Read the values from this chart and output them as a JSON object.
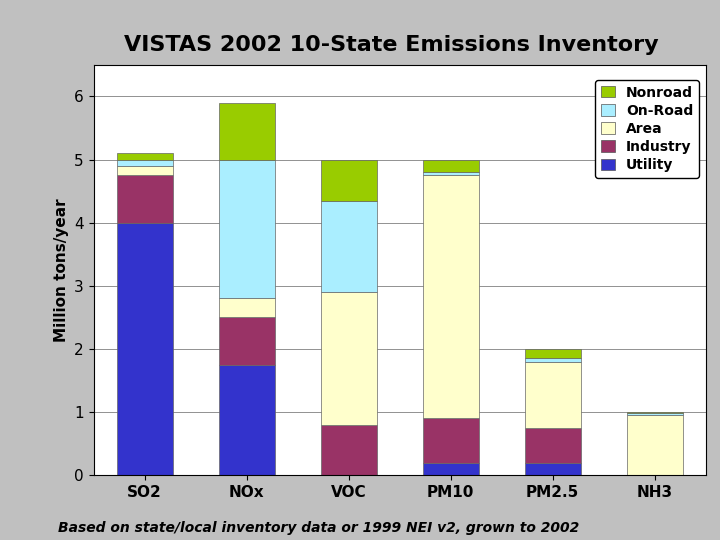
{
  "title": "VISTAS 2002 10-State Emissions Inventory",
  "ylabel": "Million tons/year",
  "footnote": "Based on state/local inventory data or 1999 NEI v2, grown to 2002",
  "categories": [
    "SO2",
    "NOx",
    "VOC",
    "PM10",
    "PM2.5",
    "NH3"
  ],
  "series": {
    "Utility": [
      4.0,
      1.75,
      0.0,
      0.2,
      0.2,
      0.0
    ],
    "Industry": [
      0.75,
      0.75,
      0.8,
      0.7,
      0.55,
      0.0
    ],
    "Area": [
      0.15,
      0.3,
      2.1,
      3.85,
      1.05,
      0.95
    ],
    "On-Road": [
      0.1,
      2.2,
      1.45,
      0.05,
      0.05,
      0.03
    ],
    "Nonroad": [
      0.1,
      0.9,
      0.65,
      0.2,
      0.15,
      0.02
    ]
  },
  "colors": {
    "Utility": "#3333cc",
    "Industry": "#993366",
    "Area": "#ffffcc",
    "On-Road": "#aaeeff",
    "Nonroad": "#99cc00"
  },
  "ylim": [
    0,
    6.5
  ],
  "yticks": [
    0,
    1,
    2,
    3,
    4,
    5,
    6
  ],
  "background_color": "#c0c0c0",
  "plot_bg_color": "#ffffff",
  "title_fontsize": 16,
  "axis_fontsize": 11,
  "legend_fontsize": 10,
  "tick_fontsize": 11,
  "footnote_fontsize": 10
}
